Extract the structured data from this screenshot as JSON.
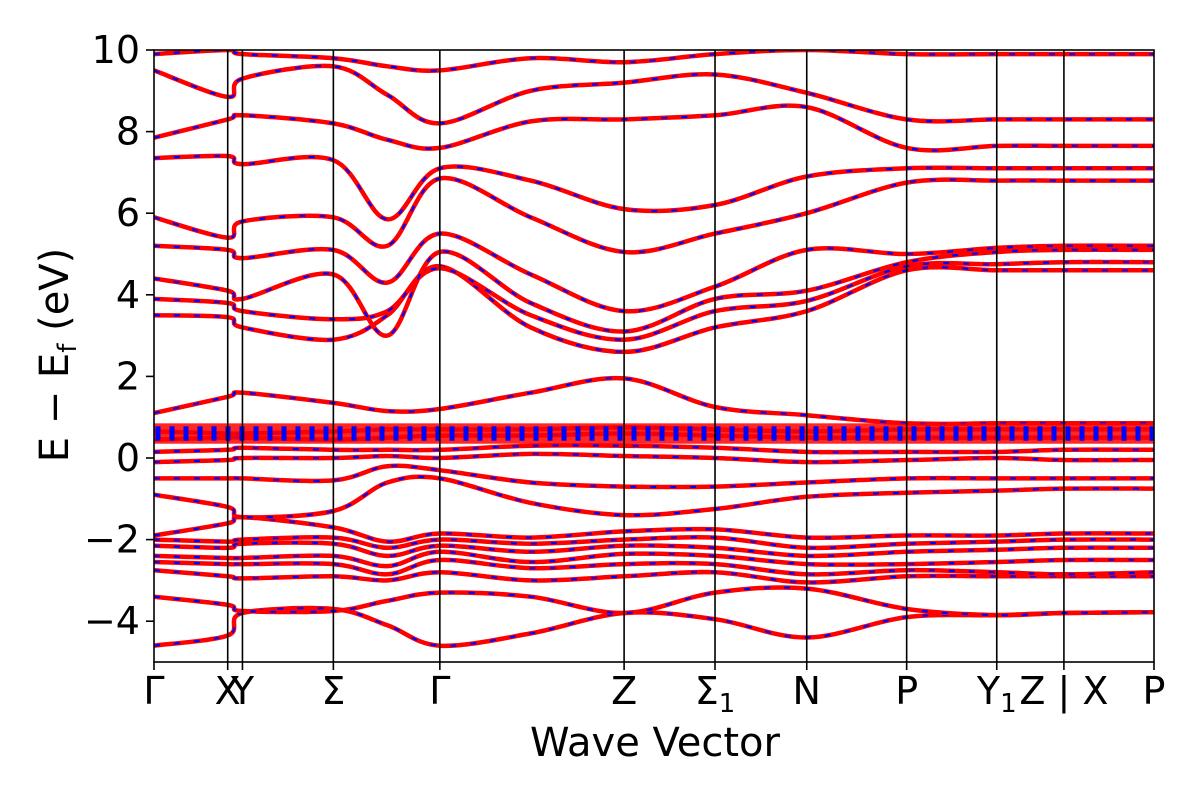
{
  "chart_data": {
    "type": "line",
    "title": "",
    "xlabel": "Wave Vector",
    "ylabel": "E − E",
    "ylabel_subscript": "f",
    "ylabel_unit": " (eV)",
    "ylim": [
      -5,
      10
    ],
    "yticks": [
      {
        "value": -4,
        "label": "−4"
      },
      {
        "value": -2,
        "label": "−2"
      },
      {
        "value": 0,
        "label": "0"
      },
      {
        "value": 2,
        "label": "2"
      },
      {
        "value": 4,
        "label": "4"
      },
      {
        "value": 6,
        "label": "6"
      },
      {
        "value": 8,
        "label": "8"
      },
      {
        "value": 10,
        "label": "10"
      }
    ],
    "xlim": [
      0,
      12.21
    ],
    "kpoints": [
      {
        "label": "Γ",
        "sub": "",
        "x": 0
      },
      {
        "label": "X",
        "sub": "",
        "x": 0.9
      },
      {
        "label": "Y",
        "sub": "",
        "x": 1.08
      },
      {
        "label": "Σ",
        "sub": "",
        "x": 2.19
      },
      {
        "label": "Γ",
        "sub": "",
        "x": 3.49
      },
      {
        "label": "Z",
        "sub": "",
        "x": 5.74
      },
      {
        "label": "Σ",
        "sub": "1",
        "x": 6.85
      },
      {
        "label": "N",
        "sub": "",
        "x": 7.97
      },
      {
        "label": "P",
        "sub": "",
        "x": 9.19
      },
      {
        "label": "Y",
        "sub": "1",
        "x": 10.29
      },
      {
        "label": "Z | X",
        "sub": "",
        "x": 11.11
      },
      {
        "label": "P",
        "sub": "",
        "x": 12.21
      }
    ],
    "series_styles": [
      {
        "color": "#ff0000",
        "style": "solid"
      },
      {
        "color": "#0000ff",
        "style": "dashed"
      }
    ],
    "grid": false,
    "bands": [
      [
        -4.6,
        -4.35,
        -3.8,
        -3.7,
        -4.1,
        -4.6,
        -4.3,
        -3.8,
        -3.95,
        -4.4,
        -3.9,
        -3.85,
        -3.8,
        -3.78
      ],
      [
        -3.4,
        -3.6,
        -3.75,
        -3.75,
        -3.5,
        -3.3,
        -3.4,
        -3.8,
        -3.3,
        -3.2,
        -3.7,
        -3.85,
        -3.8,
        -3.78
      ],
      [
        -2.75,
        -2.9,
        -2.95,
        -2.9,
        -3.0,
        -2.8,
        -3.0,
        -2.9,
        -2.8,
        -3.05,
        -2.9,
        -2.9,
        -2.9,
        -2.9
      ],
      [
        -2.55,
        -2.6,
        -2.6,
        -2.6,
        -2.85,
        -2.5,
        -2.7,
        -2.6,
        -2.6,
        -2.85,
        -2.75,
        -2.8,
        -2.85,
        -2.8
      ],
      [
        -2.4,
        -2.45,
        -2.45,
        -2.4,
        -2.65,
        -2.3,
        -2.55,
        -2.35,
        -2.4,
        -2.6,
        -2.6,
        -2.55,
        -2.5,
        -2.5
      ],
      [
        -2.15,
        -2.2,
        -2.1,
        -2.1,
        -2.4,
        -2.15,
        -2.3,
        -2.15,
        -2.2,
        -2.4,
        -2.3,
        -2.25,
        -2.2,
        -2.2
      ],
      [
        -2.0,
        -2.05,
        -2.0,
        -1.95,
        -2.2,
        -2.0,
        -2.1,
        -2.0,
        -1.95,
        -2.2,
        -2.1,
        -2.05,
        -2.0,
        -2.0
      ],
      [
        -1.9,
        -1.6,
        -1.45,
        -1.7,
        -2.05,
        -1.85,
        -1.95,
        -1.8,
        -1.75,
        -1.95,
        -1.9,
        -1.9,
        -1.85,
        -1.85
      ],
      [
        -0.9,
        -1.2,
        -1.45,
        -1.3,
        -0.6,
        -0.5,
        -1.1,
        -1.4,
        -1.25,
        -0.95,
        -0.85,
        -0.8,
        -0.75,
        -0.75
      ],
      [
        -0.5,
        -0.5,
        -0.5,
        -0.55,
        -0.2,
        -0.3,
        -0.6,
        -0.7,
        -0.7,
        -0.6,
        -0.5,
        -0.5,
        -0.5,
        -0.5
      ],
      [
        -0.1,
        -0.05,
        0.0,
        0.0,
        0.05,
        0.0,
        0.1,
        0.05,
        0.0,
        -0.1,
        -0.05,
        0.0,
        -0.05,
        -0.05
      ],
      [
        0.15,
        0.2,
        0.25,
        0.2,
        0.2,
        0.2,
        0.3,
        0.3,
        0.25,
        0.15,
        0.15,
        0.15,
        0.2,
        0.2
      ],
      [
        0.45,
        0.5,
        0.5,
        0.45,
        0.5,
        0.55,
        0.55,
        0.6,
        0.55,
        0.5,
        0.5,
        0.5,
        0.5,
        0.5
      ],
      [
        0.65,
        0.6,
        0.6,
        0.65,
        0.7,
        0.7,
        0.7,
        0.75,
        0.7,
        0.65,
        0.7,
        0.7,
        0.7,
        0.7
      ],
      [
        1.1,
        1.5,
        1.6,
        1.35,
        1.15,
        1.2,
        1.6,
        1.95,
        1.25,
        1.05,
        0.85,
        0.85,
        0.85,
        0.85
      ],
      [
        3.5,
        3.45,
        3.2,
        2.9,
        3.5,
        4.7,
        3.2,
        2.6,
        3.2,
        3.6,
        4.6,
        4.6,
        4.6,
        4.6
      ],
      [
        3.9,
        3.8,
        3.6,
        3.4,
        3.6,
        4.65,
        3.5,
        2.9,
        3.6,
        3.85,
        4.7,
        4.75,
        4.8,
        4.8
      ],
      [
        4.4,
        4.1,
        3.9,
        4.5,
        3.0,
        5.05,
        3.8,
        3.1,
        3.9,
        4.1,
        4.8,
        5.05,
        5.1,
        5.1
      ],
      [
        5.2,
        5.1,
        4.9,
        5.1,
        4.3,
        5.5,
        4.5,
        3.6,
        4.2,
        5.1,
        5.0,
        5.15,
        5.2,
        5.2
      ],
      [
        5.9,
        5.4,
        5.8,
        5.9,
        5.2,
        6.85,
        5.9,
        5.05,
        5.5,
        6.0,
        6.75,
        6.8,
        6.8,
        6.8
      ],
      [
        7.35,
        7.4,
        7.2,
        7.3,
        5.85,
        7.1,
        6.8,
        6.1,
        6.2,
        6.9,
        7.1,
        7.1,
        7.1,
        7.1
      ],
      [
        7.85,
        8.3,
        8.4,
        8.2,
        7.8,
        7.6,
        8.25,
        8.3,
        8.4,
        8.6,
        7.6,
        7.65,
        7.65,
        7.65
      ],
      [
        9.5,
        8.85,
        9.3,
        9.6,
        8.9,
        8.2,
        9.0,
        9.2,
        9.4,
        8.95,
        8.3,
        8.3,
        8.3,
        8.3
      ],
      [
        9.9,
        10.0,
        9.9,
        9.8,
        9.6,
        9.5,
        9.8,
        9.7,
        9.9,
        10.0,
        9.9,
        9.9,
        9.9,
        9.9
      ]
    ]
  }
}
